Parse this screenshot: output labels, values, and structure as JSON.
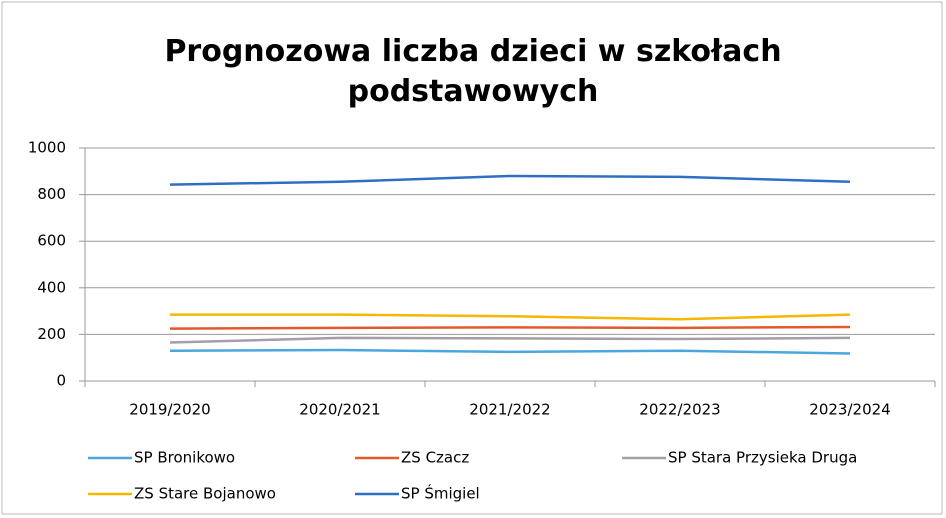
{
  "chart_data": {
    "type": "line",
    "title": "Prognozowa liczba dzieci w szkołach podstawowych",
    "categories": [
      "2019/2020",
      "2020/2021",
      "2021/2022",
      "2022/2023",
      "2023/2024"
    ],
    "series": [
      {
        "name": "SP Bronikowo",
        "color": "#4ba6de",
        "values": [
          130,
          133,
          125,
          130,
          118
        ]
      },
      {
        "name": "ZS Czacz",
        "color": "#e2592b",
        "values": [
          225,
          228,
          230,
          228,
          232
        ]
      },
      {
        "name": "SP Stara Przysieka Druga",
        "color": "#a79ca7",
        "values": [
          165,
          185,
          183,
          180,
          185
        ]
      },
      {
        "name": "ZS Stare Bojanowo",
        "color": "#f5b700",
        "values": [
          285,
          285,
          278,
          265,
          285
        ]
      },
      {
        "name": "SP Śmigiel",
        "color": "#2f6fc3",
        "values": [
          843,
          855,
          880,
          876,
          855
        ]
      }
    ],
    "ylim": [
      0,
      1000
    ],
    "yticks": [
      0,
      200,
      400,
      600,
      800,
      1000
    ],
    "grid": true
  }
}
